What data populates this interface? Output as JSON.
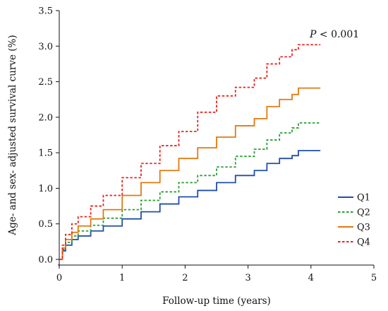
{
  "chart_data": {
    "type": "line",
    "title": "",
    "xlabel": "Follow-up time (years)",
    "ylabel": "Age- and sex- adjusted survival curve (%)",
    "xlim": [
      0,
      5
    ],
    "ylim": [
      0,
      3.5
    ],
    "xticks": [
      "0",
      "1",
      "2",
      "3",
      "4",
      "5"
    ],
    "yticks": [
      "0.0",
      "0.5",
      "1.0",
      "1.5",
      "2.0",
      "2.5",
      "3.0",
      "3.5"
    ],
    "annotation": {
      "italic": "P",
      "rest": " < 0.001"
    },
    "legend_position": "bottom-right",
    "grid": false,
    "series": [
      {
        "name": "Q1",
        "color": "#1f4fa8",
        "dash": "solid",
        "x": [
          0,
          0.05,
          0.1,
          0.2,
          0.3,
          0.5,
          0.7,
          1.0,
          1.3,
          1.6,
          1.9,
          2.2,
          2.5,
          2.8,
          3.1,
          3.3,
          3.5,
          3.7,
          3.8,
          4.15
        ],
        "y": [
          0,
          0.12,
          0.2,
          0.28,
          0.33,
          0.4,
          0.47,
          0.57,
          0.67,
          0.78,
          0.88,
          0.97,
          1.08,
          1.18,
          1.25,
          1.35,
          1.42,
          1.46,
          1.53,
          1.53
        ]
      },
      {
        "name": "Q2",
        "color": "#2e9e35",
        "dash": "dashed",
        "x": [
          0,
          0.05,
          0.1,
          0.2,
          0.3,
          0.5,
          0.7,
          1.0,
          1.3,
          1.6,
          1.9,
          2.2,
          2.5,
          2.8,
          3.1,
          3.3,
          3.5,
          3.7,
          3.8,
          4.15
        ],
        "y": [
          0,
          0.14,
          0.24,
          0.33,
          0.4,
          0.48,
          0.58,
          0.7,
          0.83,
          0.95,
          1.08,
          1.18,
          1.3,
          1.45,
          1.55,
          1.68,
          1.78,
          1.85,
          1.92,
          1.92
        ]
      },
      {
        "name": "Q3",
        "color": "#e07a10",
        "dash": "solid",
        "x": [
          0,
          0.05,
          0.1,
          0.2,
          0.3,
          0.5,
          0.7,
          1.0,
          1.3,
          1.6,
          1.9,
          2.2,
          2.5,
          2.8,
          3.1,
          3.3,
          3.5,
          3.7,
          3.8,
          4.15
        ],
        "y": [
          0,
          0.16,
          0.28,
          0.38,
          0.47,
          0.57,
          0.7,
          0.9,
          1.08,
          1.25,
          1.42,
          1.57,
          1.72,
          1.88,
          1.98,
          2.15,
          2.25,
          2.32,
          2.41,
          2.41
        ]
      },
      {
        "name": "Q4",
        "color": "#e8251f",
        "dash": "dashed",
        "x": [
          0,
          0.05,
          0.1,
          0.2,
          0.3,
          0.5,
          0.7,
          1.0,
          1.3,
          1.6,
          1.9,
          2.2,
          2.5,
          2.8,
          3.1,
          3.3,
          3.5,
          3.7,
          3.8,
          4.15
        ],
        "y": [
          0,
          0.2,
          0.35,
          0.5,
          0.6,
          0.75,
          0.9,
          1.15,
          1.35,
          1.6,
          1.8,
          2.07,
          2.3,
          2.42,
          2.55,
          2.75,
          2.85,
          2.95,
          3.02,
          3.02
        ]
      }
    ]
  }
}
